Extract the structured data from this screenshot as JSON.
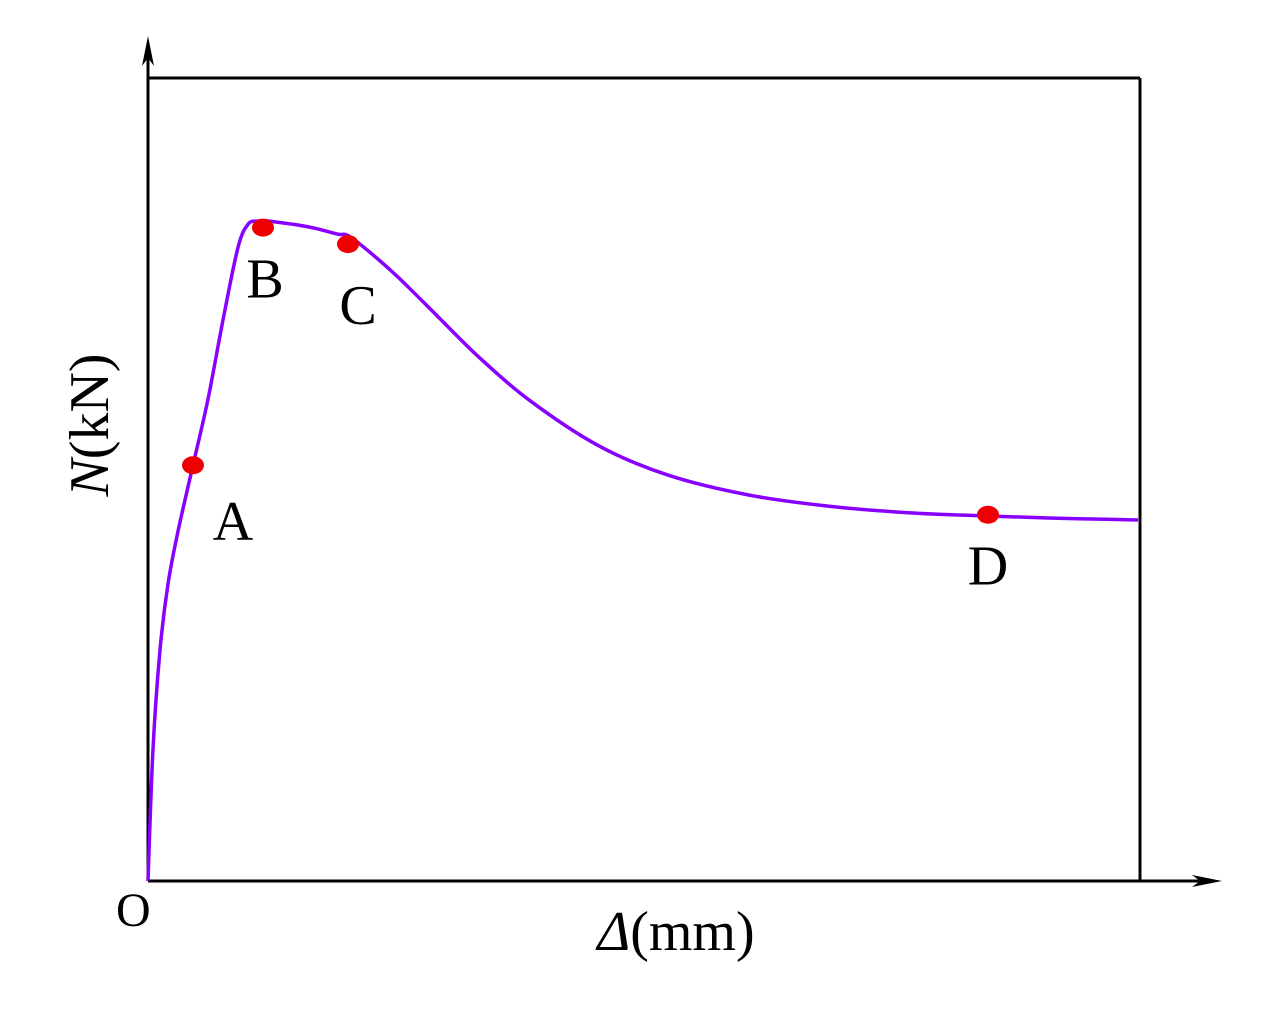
{
  "chart_data": {
    "type": "line",
    "title": "",
    "xlabel_symbol": "Δ",
    "xlabel_unit": "(mm)",
    "ylabel_symbol": "N",
    "ylabel_unit": "(kN)",
    "origin_label": "O",
    "xlim": [
      0,
      100
    ],
    "ylim": [
      0,
      100
    ],
    "grid": false,
    "legend": "none",
    "series": [
      {
        "color": "#8800ff",
        "x": [
          0,
          0.5,
          1.2,
          2.0,
          3.0,
          4.5,
          6.0,
          7.5,
          9.0,
          10.0,
          11.0,
          12.0,
          13.0,
          15.0,
          17.0,
          19.0,
          20.0,
          22.0,
          25.0,
          29.0,
          33.0,
          38.0,
          45.0,
          52.0,
          60.0,
          68.0,
          76.0,
          84.0,
          90.0,
          93.0,
          99.0
        ],
        "y": [
          0,
          20,
          35,
          45,
          53,
          63,
          73,
          85,
          96,
          99.5,
          100,
          100,
          99.8,
          99.4,
          98.8,
          98.0,
          97.8,
          95.5,
          91.5,
          85.5,
          79.5,
          73.0,
          66.0,
          61.5,
          58.5,
          56.8,
          55.8,
          55.3,
          55.0,
          54.9,
          54.7
        ]
      }
    ],
    "points": [
      {
        "label": "A",
        "x": 4.5,
        "y": 63,
        "color": "#ee0000"
      },
      {
        "label": "B",
        "x": 11.5,
        "y": 99,
        "color": "#ee0000"
      },
      {
        "label": "C",
        "x": 20.0,
        "y": 96.5,
        "color": "#ee0000"
      },
      {
        "label": "D",
        "x": 84.0,
        "y": 55.5,
        "color": "#ee0000"
      }
    ]
  }
}
